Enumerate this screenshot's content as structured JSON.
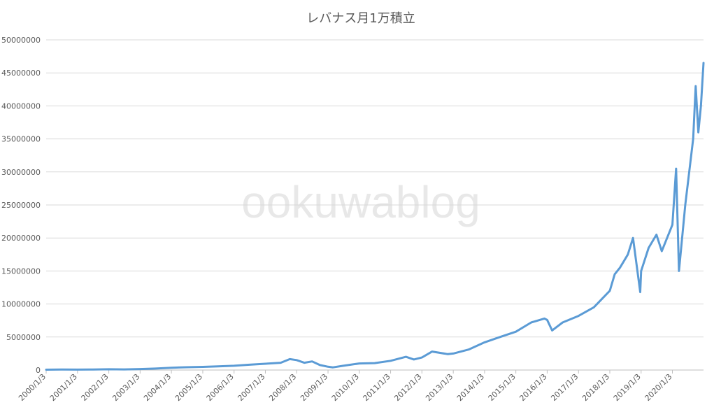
{
  "chart_data": {
    "type": "line",
    "title": "レバナス月1万積立",
    "xlabel": "",
    "ylabel": "",
    "ylim": [
      0,
      50000000
    ],
    "y_ticks": [
      "0",
      "5000000",
      "10000000",
      "15000000",
      "20000000",
      "25000000",
      "30000000",
      "35000000",
      "40000000",
      "45000000",
      "50000000"
    ],
    "x_ticks": [
      "2000/1/3",
      "2001/1/3",
      "2002/1/3",
      "2003/1/3",
      "2004/1/3",
      "2005/1/3",
      "2006/1/3",
      "2007/1/3",
      "2008/1/3",
      "2009/1/3",
      "2010/1/3",
      "2011/1/3",
      "2012/1/3",
      "2013/1/3",
      "2014/1/3",
      "2015/1/3",
      "2016/1/3",
      "2017/1/3",
      "2018/1/3",
      "2019/1/3",
      "2020/1/3"
    ],
    "grid": true,
    "legend": "none",
    "series_color": "#5b9bd5",
    "watermark": "ookuwablog",
    "series": [
      {
        "x": [
          "2000/1/3",
          "2000/7/1",
          "2001/1/3",
          "2001/7/1",
          "2002/1/3",
          "2002/7/1",
          "2003/1/3",
          "2003/7/1",
          "2004/1/3",
          "2004/7/1",
          "2005/1/3",
          "2005/7/1",
          "2006/1/3",
          "2006/7/1",
          "2007/1/3",
          "2007/7/1",
          "2007/10/15",
          "2008/1/3",
          "2008/4/1",
          "2008/7/1",
          "2008/10/1",
          "2009/1/3",
          "2009/3/1",
          "2009/7/1",
          "2010/1/3",
          "2010/7/1",
          "2011/1/3",
          "2011/7/1",
          "2011/10/1",
          "2012/1/3",
          "2012/5/1",
          "2012/11/1",
          "2013/1/3",
          "2013/7/1",
          "2014/1/3",
          "2014/7/1",
          "2015/1/3",
          "2015/7/1",
          "2015/12/1",
          "2016/1/3",
          "2016/3/1",
          "2016/7/1",
          "2017/1/3",
          "2017/7/1",
          "2018/1/3",
          "2018/3/1",
          "2018/5/1",
          "2018/8/1",
          "2018/10/1",
          "2018/12/24",
          "2019/1/3",
          "2019/4/1",
          "2019/7/1",
          "2019/9/1",
          "2020/1/3",
          "2020/2/15",
          "2020/3/20",
          "2020/6/1",
          "2020/9/1",
          "2020/10/1",
          "2020/11/1",
          "2020/12/1",
          "2020/12/31"
        ],
        "values": [
          50000,
          70000,
          60000,
          80000,
          120000,
          100000,
          150000,
          220000,
          350000,
          420000,
          480000,
          560000,
          650000,
          800000,
          950000,
          1100000,
          1650000,
          1500000,
          1100000,
          1300000,
          750000,
          500000,
          400000,
          650000,
          1000000,
          1050000,
          1400000,
          2000000,
          1600000,
          1900000,
          2800000,
          2400000,
          2500000,
          3100000,
          4200000,
          5000000,
          5800000,
          7200000,
          7800000,
          7600000,
          6000000,
          7200000,
          8200000,
          9500000,
          12000000,
          14500000,
          15500000,
          17500000,
          20000000,
          11800000,
          15000000,
          18500000,
          20500000,
          18000000,
          22000000,
          30500000,
          15000000,
          25000000,
          35000000,
          43000000,
          36000000,
          40000000,
          46500000
        ]
      }
    ]
  }
}
